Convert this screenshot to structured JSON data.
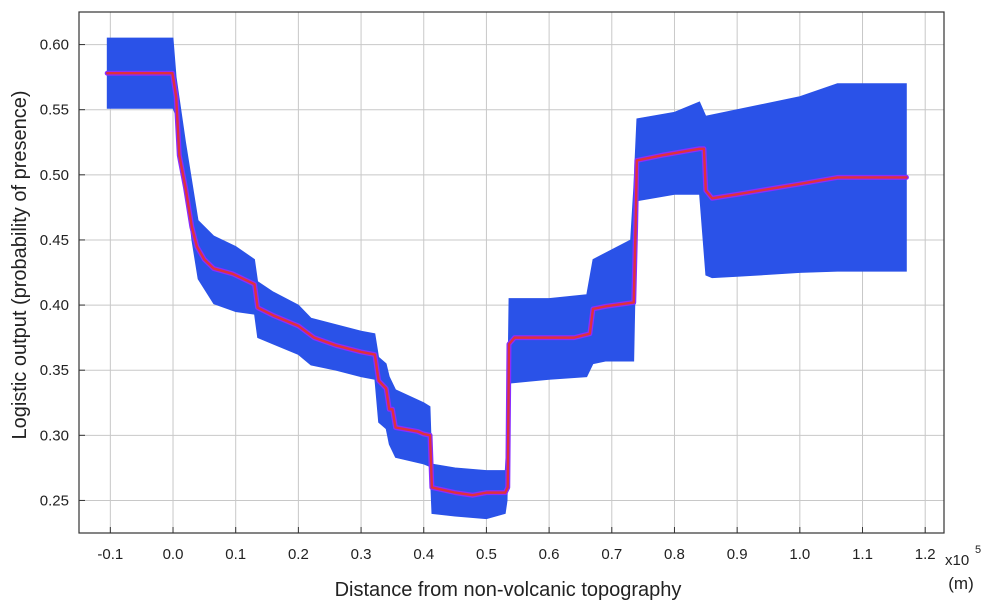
{
  "chart_data": {
    "type": "area",
    "title": "",
    "xlabel": "Distance from non-volcanic topography",
    "ylabel": "Logistic output (probability of presence)",
    "x_multiplier": "x10",
    "x_multiplier_exponent": "5",
    "x_unit": "(m)",
    "xlim": [
      -0.15,
      1.23
    ],
    "ylim": [
      0.225,
      0.625
    ],
    "grid": true,
    "x_ticks": [
      "-0.1",
      "0.0",
      "0.1",
      "0.2",
      "0.3",
      "0.4",
      "0.5",
      "0.6",
      "0.7",
      "0.8",
      "0.9",
      "1.0",
      "1.1",
      "1.2"
    ],
    "x_tick_values": [
      -0.1,
      0.0,
      0.1,
      0.2,
      0.3,
      0.4,
      0.5,
      0.6,
      0.7,
      0.8,
      0.9,
      1.0,
      1.1,
      1.2
    ],
    "y_ticks": [
      "0.25",
      "0.30",
      "0.35",
      "0.40",
      "0.45",
      "0.50",
      "0.55",
      "0.60"
    ],
    "y_tick_values": [
      0.25,
      0.3,
      0.35,
      0.4,
      0.45,
      0.5,
      0.55,
      0.6
    ],
    "series": [
      {
        "role": "mean",
        "color": "#e0303c",
        "x": [
          -0.105,
          -0.001,
          0.005,
          0.01,
          0.02,
          0.03,
          0.038,
          0.05,
          0.065,
          0.095,
          0.13,
          0.135,
          0.16,
          0.2,
          0.225,
          0.26,
          0.3,
          0.322,
          0.328,
          0.34,
          0.345,
          0.35,
          0.355,
          0.39,
          0.4,
          0.41,
          0.413,
          0.45,
          0.478,
          0.5,
          0.53,
          0.534,
          0.536,
          0.545,
          0.6,
          0.64,
          0.665,
          0.67,
          0.69,
          0.735,
          0.738,
          0.74,
          0.78,
          0.84,
          0.847,
          0.85,
          0.86,
          0.9,
          1.0,
          1.06,
          1.17
        ],
        "y": [
          0.578,
          0.578,
          0.56,
          0.515,
          0.49,
          0.46,
          0.445,
          0.435,
          0.428,
          0.424,
          0.416,
          0.398,
          0.392,
          0.384,
          0.375,
          0.369,
          0.364,
          0.362,
          0.342,
          0.336,
          0.32,
          0.32,
          0.306,
          0.303,
          0.301,
          0.3,
          0.26,
          0.256,
          0.254,
          0.256,
          0.256,
          0.26,
          0.37,
          0.375,
          0.375,
          0.375,
          0.378,
          0.397,
          0.399,
          0.402,
          0.46,
          0.511,
          0.515,
          0.52,
          0.52,
          0.488,
          0.482,
          0.485,
          0.493,
          0.498,
          0.498
        ]
      },
      {
        "role": "band-upper",
        "color": "#2a52e8",
        "x": [
          -0.105,
          0.0,
          0.005,
          0.02,
          0.04,
          0.065,
          0.1,
          0.13,
          0.135,
          0.16,
          0.2,
          0.22,
          0.26,
          0.3,
          0.322,
          0.328,
          0.34,
          0.345,
          0.355,
          0.4,
          0.41,
          0.413,
          0.45,
          0.5,
          0.53,
          0.533,
          0.536,
          0.6,
          0.66,
          0.67,
          0.69,
          0.73,
          0.735,
          0.74,
          0.8,
          0.84,
          0.85,
          0.9,
          1.0,
          1.06,
          1.17
        ],
        "y": [
          0.605,
          0.605,
          0.575,
          0.525,
          0.465,
          0.453,
          0.445,
          0.435,
          0.418,
          0.41,
          0.4,
          0.39,
          0.385,
          0.38,
          0.378,
          0.36,
          0.355,
          0.345,
          0.335,
          0.325,
          0.322,
          0.278,
          0.275,
          0.273,
          0.273,
          0.3,
          0.405,
          0.405,
          0.408,
          0.435,
          0.44,
          0.45,
          0.49,
          0.543,
          0.548,
          0.556,
          0.545,
          0.55,
          0.56,
          0.57,
          0.57
        ]
      },
      {
        "role": "band-lower",
        "color": "#2a52e8",
        "x": [
          -0.105,
          0.0,
          0.005,
          0.02,
          0.03,
          0.04,
          0.065,
          0.1,
          0.13,
          0.135,
          0.16,
          0.2,
          0.22,
          0.26,
          0.3,
          0.322,
          0.328,
          0.34,
          0.345,
          0.355,
          0.4,
          0.41,
          0.413,
          0.45,
          0.5,
          0.53,
          0.533,
          0.536,
          0.6,
          0.66,
          0.67,
          0.69,
          0.735,
          0.74,
          0.8,
          0.84,
          0.85,
          0.86,
          0.9,
          1.0,
          1.06,
          1.17
        ],
        "y": [
          0.551,
          0.551,
          0.545,
          0.495,
          0.45,
          0.42,
          0.401,
          0.395,
          0.393,
          0.375,
          0.37,
          0.362,
          0.354,
          0.35,
          0.345,
          0.343,
          0.31,
          0.305,
          0.293,
          0.283,
          0.278,
          0.276,
          0.24,
          0.238,
          0.236,
          0.24,
          0.25,
          0.34,
          0.343,
          0.345,
          0.355,
          0.357,
          0.357,
          0.48,
          0.485,
          0.485,
          0.423,
          0.421,
          0.422,
          0.425,
          0.426,
          0.426
        ]
      }
    ]
  }
}
